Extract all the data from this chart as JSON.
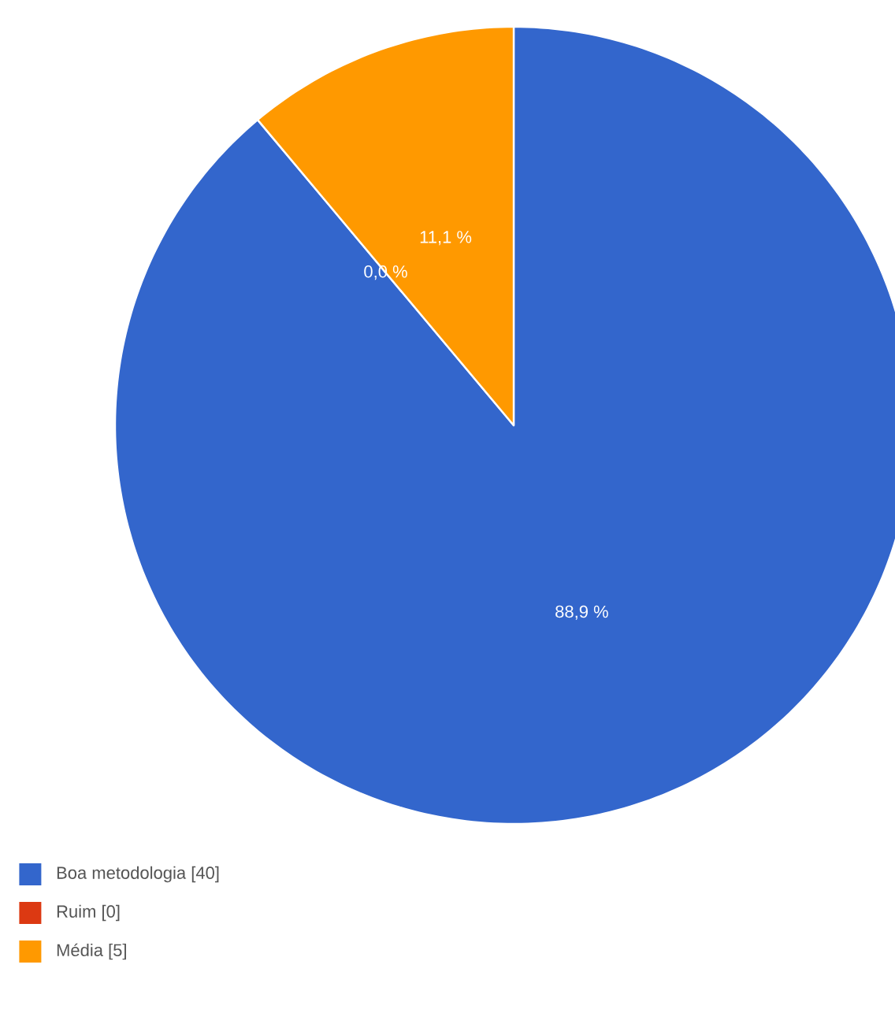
{
  "chart_data": {
    "type": "pie",
    "categories": [
      "Boa metodologia [40]",
      "Ruim [0]",
      "Média [5]"
    ],
    "values": [
      88.9,
      0.0,
      11.1
    ],
    "colors": [
      "#3366cc",
      "#dc3912",
      "#ff9900"
    ],
    "value_labels": [
      "88,9 %",
      "0,0 %",
      "11,1 %"
    ],
    "legend": "bottom left"
  }
}
